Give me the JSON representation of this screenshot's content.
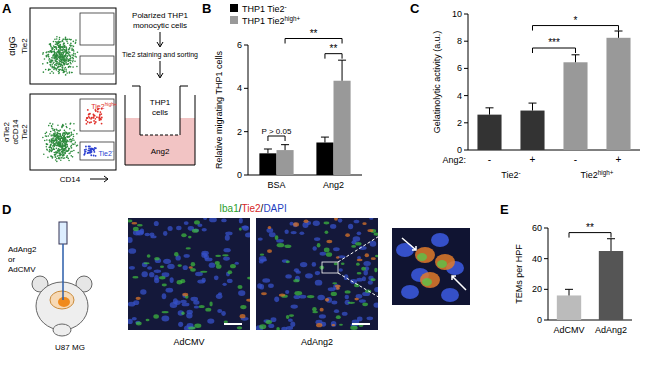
{
  "panel_labels": [
    "A",
    "B",
    "C",
    "D",
    "E"
  ],
  "flow": {
    "ylabel_top": "αIgG",
    "ylabel_bottom": [
      "αTie2",
      "αCD14"
    ],
    "y_axis": "Tie2",
    "x_axis": "CD14",
    "gate_high": "Tie2high+",
    "gate_low": "Tie2-"
  },
  "transwell": {
    "steps": [
      "Polarized THP1",
      "monocytic cells",
      "Tie2 staining and sorting"
    ],
    "insert": [
      "THP1",
      "cells"
    ],
    "bottom": "Ang2"
  },
  "mouse": {
    "injection": [
      "AdAng2",
      "or",
      "AdCMV"
    ],
    "tumor": "U87 MG"
  },
  "micrographs": {
    "stains": [
      {
        "text": "Iba1",
        "color": "#2ca02c"
      },
      {
        "text": "/",
        "color": "#000000"
      },
      {
        "text": "Tie2",
        "color": "#d62728"
      },
      {
        "text": "/",
        "color": "#000000"
      },
      {
        "text": "DAPI",
        "color": "#1f3fbf"
      }
    ],
    "labels": [
      "AdCMV",
      "AdAng2"
    ]
  },
  "chart_data": [
    {
      "type": "bar",
      "categories": [
        "BSA",
        "Ang2"
      ],
      "y_label": "Relative migrating THP1 cells",
      "ylim": [
        0,
        6
      ],
      "yticks": [
        0,
        2,
        4,
        6
      ],
      "legend": "top-left",
      "series": [
        {
          "name": "THP1 Tie2-",
          "color": "#000000",
          "values": [
            1,
            1.5
          ],
          "errors": [
            0.2,
            0.25
          ]
        },
        {
          "name": "THP1 Tie2high+",
          "color": "#999999",
          "values": [
            1.15,
            4.35
          ],
          "errors": [
            0.25,
            0.95
          ]
        }
      ],
      "annotations": [
        "P > 0.05",
        "**",
        "**"
      ]
    },
    {
      "type": "bar",
      "categories": [
        "-",
        "+",
        "-",
        "+"
      ],
      "category_prefix": "Ang2:",
      "groups": [
        "Tie2-",
        "Tie2high+"
      ],
      "y_label": "Gelatinolytic activity (a.u.)",
      "ylim": [
        0,
        10
      ],
      "yticks": [
        0,
        2,
        4,
        6,
        8,
        10
      ],
      "values": [
        2.6,
        2.9,
        6.45,
        8.25
      ],
      "errors": [
        0.5,
        0.55,
        0.55,
        0.5
      ],
      "colors": [
        "#333333",
        "#333333",
        "#999999",
        "#999999"
      ],
      "annotations": [
        "***",
        "*"
      ]
    },
    {
      "type": "bar",
      "categories": [
        "AdCMV",
        "AdAng2"
      ],
      "y_label": "TEMs per HPF",
      "ylim": [
        0,
        60
      ],
      "yticks": [
        0,
        20,
        40,
        60
      ],
      "values": [
        16,
        45
      ],
      "errors": [
        4,
        8
      ],
      "colors": [
        "#bbbbbb",
        "#555555"
      ],
      "annotations": [
        "**"
      ]
    }
  ]
}
